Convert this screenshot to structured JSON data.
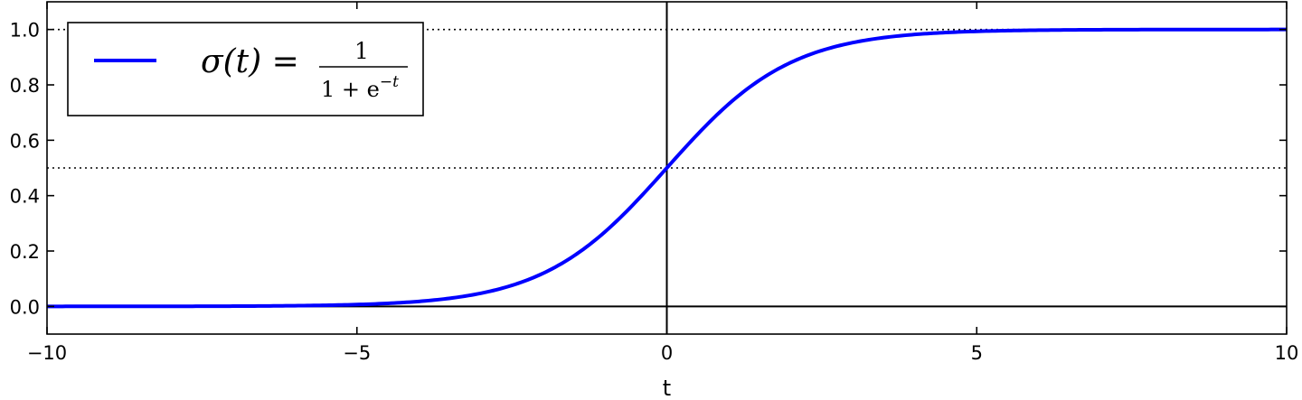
{
  "chart_data": {
    "type": "line",
    "title": "",
    "xlabel": "t",
    "ylabel": "",
    "xlim": [
      -10,
      10
    ],
    "ylim": [
      -0.1,
      1.1
    ],
    "x_ticks": [
      -10,
      -5,
      0,
      5,
      10
    ],
    "x_tick_labels": [
      "−10",
      "−5",
      "0",
      "5",
      "10"
    ],
    "y_ticks": [
      0.0,
      0.2,
      0.4,
      0.6,
      0.8,
      1.0
    ],
    "y_tick_labels": [
      "0.0",
      "0.2",
      "0.4",
      "0.6",
      "0.8",
      "1.0"
    ],
    "grid": false,
    "series": [
      {
        "name": "sigma(t) = 1/(1+e^(-t))",
        "color": "#0000ff",
        "function": "sigmoid",
        "x": [
          -10,
          -8,
          -6,
          -5,
          -4,
          -3,
          -2,
          -1,
          0,
          1,
          2,
          3,
          4,
          5,
          6,
          8,
          10
        ],
        "y": [
          0.0,
          0.0003,
          0.0025,
          0.0067,
          0.018,
          0.047,
          0.119,
          0.269,
          0.5,
          0.731,
          0.881,
          0.953,
          0.982,
          0.9933,
          0.9975,
          0.9997,
          1.0
        ]
      }
    ],
    "reference_lines": [
      {
        "orientation": "horizontal",
        "value": 0.0,
        "style": "solid",
        "color": "#000000"
      },
      {
        "orientation": "horizontal",
        "value": 0.5,
        "style": "dotted",
        "color": "#000000"
      },
      {
        "orientation": "horizontal",
        "value": 1.0,
        "style": "dotted",
        "color": "#000000"
      },
      {
        "orientation": "vertical",
        "value": 0.0,
        "style": "solid",
        "color": "#000000"
      }
    ],
    "legend": {
      "placement": "top-left",
      "lhs": "σ(t) =",
      "numerator": "1",
      "denominator_base": "1 + e",
      "denominator_exp": "−t"
    }
  }
}
